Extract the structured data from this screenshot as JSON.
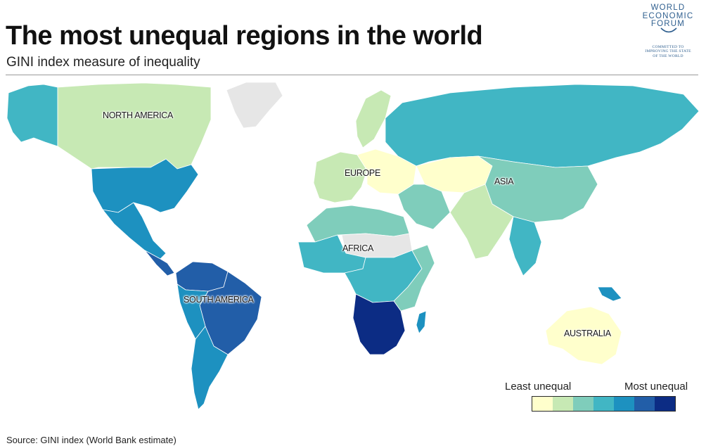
{
  "header": {
    "title": "The most unequal regions in the world",
    "subtitle": "GINI index measure of inequality"
  },
  "logo": {
    "lines": [
      "WORLD",
      "ECONOMIC",
      "FORUM"
    ],
    "tagline": [
      "COMMITTED TO",
      "IMPROVING THE STATE",
      "OF THE WORLD"
    ]
  },
  "regions": {
    "north_america": "NORTH AMERICA",
    "south_america": "SOUTH AMERICA",
    "europe": "EUROPE",
    "africa": "AFRICA",
    "asia": "ASIA",
    "australia": "AUSTRALIA"
  },
  "legend": {
    "low_label": "Least unequal",
    "high_label": "Most unequal",
    "colors": [
      "#ffffcc",
      "#c7e9b4",
      "#7fcdbb",
      "#41b6c4",
      "#1d91c0",
      "#225ea8",
      "#0c2c84"
    ]
  },
  "source": "Source:  GINI index (World Bank estimate)",
  "map_colors": {
    "no_data": "#e6e6e6",
    "ocean": "#ffffff"
  },
  "region_levels": {
    "alaska": 4,
    "canada": 2,
    "greenland": 0,
    "usa": 5,
    "mexico": 5,
    "central_america": 6,
    "south_america_north": 6,
    "brazil": 6,
    "andes": 5,
    "southern_cone": 5,
    "scandinavia": 2,
    "western_europe": 2,
    "eastern_europe": 1,
    "russia": 4,
    "central_asia": 1,
    "middle_east": 3,
    "china": 3,
    "india": 2,
    "southeast_asia": 4,
    "north_africa": 3,
    "sahara": 0,
    "west_africa": 4,
    "central_africa": 4,
    "east_africa": 3,
    "southern_africa": 7,
    "madagascar": 5,
    "australia": 1,
    "new_guinea": 5
  }
}
